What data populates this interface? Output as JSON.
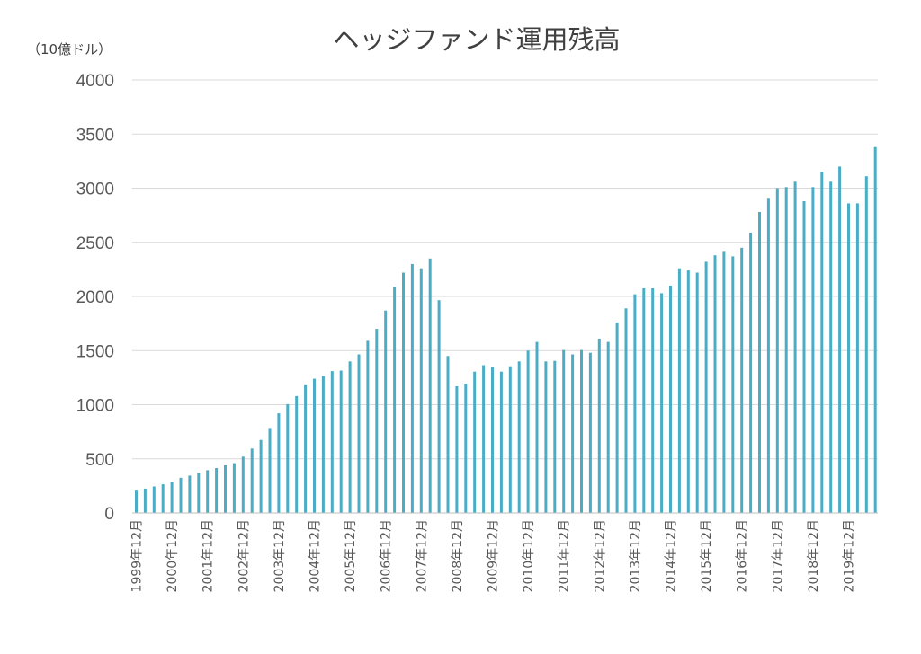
{
  "chart_data": {
    "type": "bar",
    "title": "ヘッジファンド運用残高",
    "unit_label": "（10億ドル）",
    "ylim": [
      0,
      4000
    ],
    "yticks": [
      0,
      500,
      1000,
      1500,
      2000,
      2500,
      3000,
      3500,
      4000
    ],
    "grid": true,
    "colors": {
      "bar": "#4bacc6",
      "grid": "#d9d9d9",
      "text": "#595959"
    },
    "x_tick_labels": [
      "1999年12月",
      "2000年12月",
      "2001年12月",
      "2002年12月",
      "2003年12月",
      "2004年12月",
      "2005年12月",
      "2006年12月",
      "2007年12月",
      "2008年12月",
      "2009年12月",
      "2010年12月",
      "2011年12月",
      "2012年12月",
      "2013年12月",
      "2014年12月",
      "2015年12月",
      "2016年12月",
      "2017年12月",
      "2018年12月",
      "2019年12月"
    ],
    "values": [
      215,
      225,
      245,
      265,
      290,
      325,
      345,
      370,
      395,
      415,
      440,
      460,
      520,
      595,
      675,
      785,
      920,
      1005,
      1080,
      1180,
      1240,
      1265,
      1310,
      1315,
      1400,
      1465,
      1590,
      1700,
      1870,
      2090,
      2220,
      2300,
      2260,
      2350,
      1965,
      1450,
      1170,
      1195,
      1305,
      1365,
      1350,
      1305,
      1355,
      1400,
      1500,
      1580,
      1400,
      1405,
      1505,
      1465,
      1505,
      1480,
      1610,
      1580,
      1760,
      1890,
      2020,
      2075,
      2075,
      2030,
      2100,
      2260,
      2240,
      2220,
      2320,
      2380,
      2420,
      2370,
      2450,
      2590,
      2780,
      2910,
      3000,
      3010,
      3060,
      2880,
      3010,
      3150,
      3060,
      3200,
      2860,
      2860,
      3110,
      3380
    ]
  }
}
